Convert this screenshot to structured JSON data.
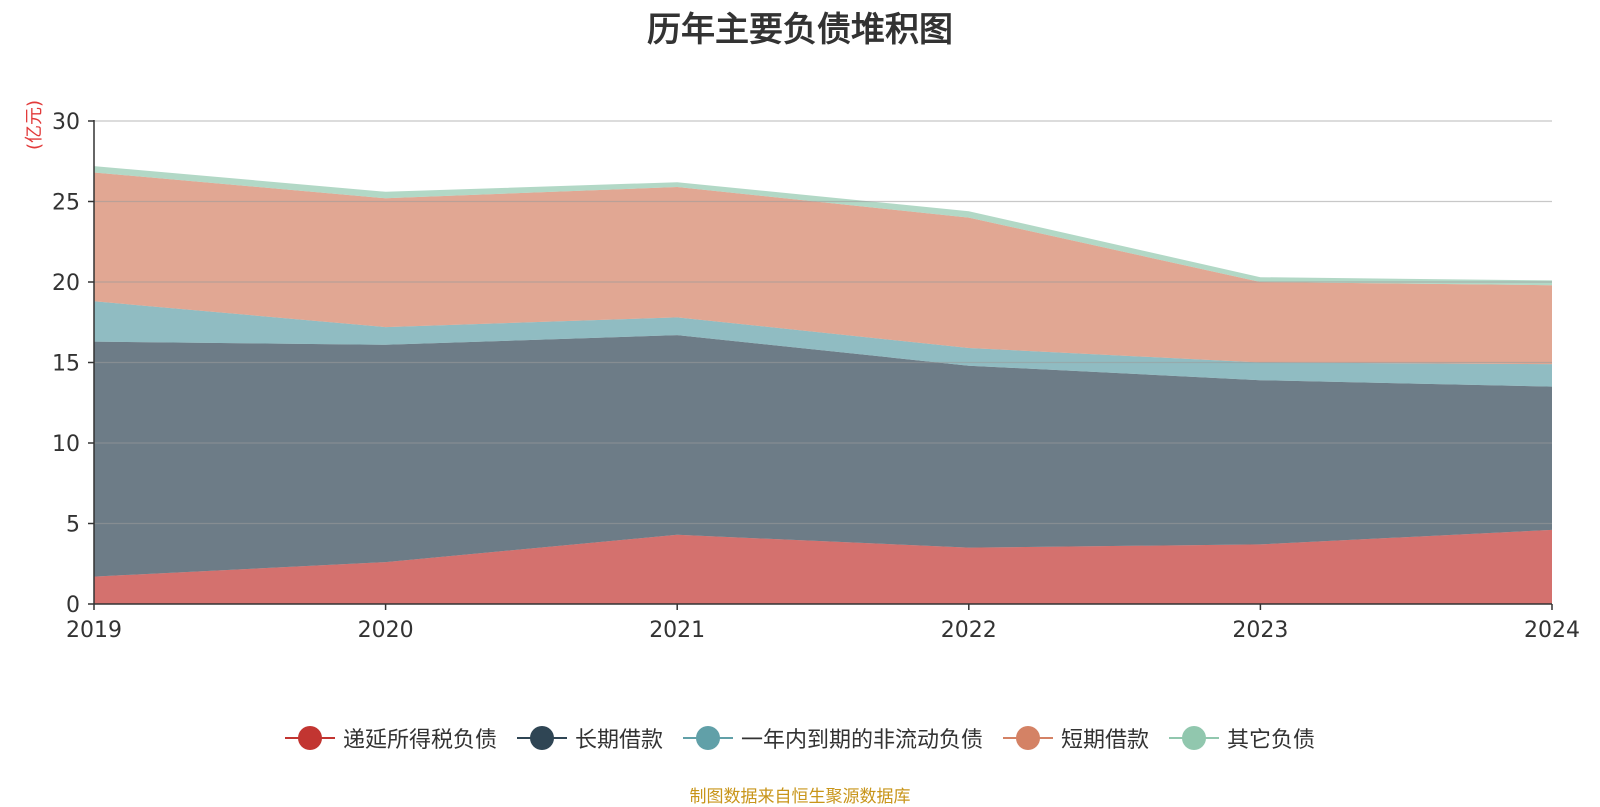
{
  "title": "历年主要负债堆积图",
  "unit": "(亿元)",
  "source": "制图数据来自恒生聚源数据库",
  "chart_data": {
    "type": "area",
    "stacked": true,
    "x": [
      "2019",
      "2020",
      "2021",
      "2022",
      "2023",
      "2024"
    ],
    "ylim": [
      0,
      30
    ],
    "yticks": [
      0,
      5,
      10,
      15,
      20,
      25,
      30
    ],
    "grid": true,
    "legend_position": "bottom",
    "series": [
      {
        "name": "递延所得税负债",
        "color": "#c23531",
        "values": [
          1.7,
          2.6,
          4.3,
          3.5,
          3.7,
          4.6
        ]
      },
      {
        "name": "长期借款",
        "color": "#2f4554",
        "values": [
          14.6,
          13.5,
          12.4,
          11.3,
          10.2,
          8.9
        ]
      },
      {
        "name": "一年内到期的非流动负债",
        "color": "#61a0a8",
        "values": [
          2.5,
          1.1,
          1.1,
          1.1,
          1.1,
          1.4
        ]
      },
      {
        "name": "短期借款",
        "color": "#d48265",
        "values": [
          8.0,
          8.0,
          8.1,
          8.1,
          5.0,
          4.9
        ]
      },
      {
        "name": "其它负债",
        "color": "#91c7ae",
        "values": [
          0.4,
          0.4,
          0.3,
          0.4,
          0.3,
          0.3
        ]
      }
    ]
  }
}
